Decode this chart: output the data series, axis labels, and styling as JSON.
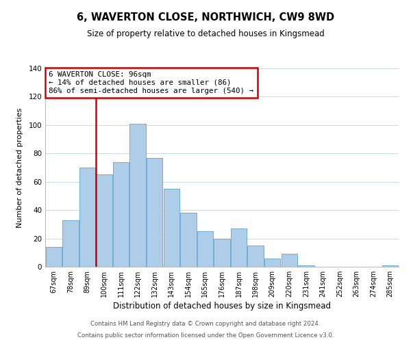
{
  "title": "6, WAVERTON CLOSE, NORTHWICH, CW9 8WD",
  "subtitle": "Size of property relative to detached houses in Kingsmead",
  "xlabel": "Distribution of detached houses by size in Kingsmead",
  "ylabel": "Number of detached properties",
  "bar_color": "#aecde8",
  "bar_edge_color": "#6aaed6",
  "categories": [
    "67sqm",
    "78sqm",
    "89sqm",
    "100sqm",
    "111sqm",
    "122sqm",
    "132sqm",
    "143sqm",
    "154sqm",
    "165sqm",
    "176sqm",
    "187sqm",
    "198sqm",
    "209sqm",
    "220sqm",
    "231sqm",
    "241sqm",
    "252sqm",
    "263sqm",
    "274sqm",
    "285sqm"
  ],
  "values": [
    14,
    33,
    70,
    65,
    74,
    101,
    77,
    55,
    38,
    25,
    20,
    27,
    15,
    6,
    9,
    1,
    0,
    0,
    0,
    0,
    1
  ],
  "ylim": [
    0,
    140
  ],
  "yticks": [
    0,
    20,
    40,
    60,
    80,
    100,
    120,
    140
  ],
  "vline_x_index": 2,
  "vline_color": "#cc0000",
  "annotation_title": "6 WAVERTON CLOSE: 96sqm",
  "annotation_line1": "← 14% of detached houses are smaller (86)",
  "annotation_line2": "86% of semi-detached houses are larger (540) →",
  "annotation_box_color": "#ffffff",
  "annotation_box_edge": "#cc0000",
  "footer_line1": "Contains HM Land Registry data © Crown copyright and database right 2024.",
  "footer_line2": "Contains public sector information licensed under the Open Government Licence v3.0.",
  "background_color": "#ffffff",
  "grid_color": "#c8daea"
}
